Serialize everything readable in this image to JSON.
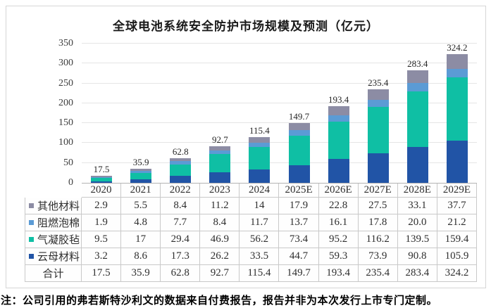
{
  "title": "全球电池系统安全防护市场规模及预测（亿元）",
  "note": "注：公司引用的弗若斯特沙利文的数据来自付费报告，报告并非为本次发行上市专门定制。",
  "chart_data": {
    "type": "bar",
    "stacked": true,
    "title": "全球电池系统安全防护市场规模及预测（亿元）",
    "categories": [
      "2020",
      "2021",
      "2022",
      "2023",
      "2024",
      "2025E",
      "2026E",
      "2027E",
      "2028E",
      "2029E"
    ],
    "series": [
      {
        "name": "其他材料",
        "color": "#8C8CA4",
        "values": [
          "2.9",
          "5.5",
          "8.4",
          "11.2",
          "14",
          "17.9",
          "22.8",
          "27.5",
          "33.1",
          "37.7"
        ]
      },
      {
        "name": "阻燃泡棉",
        "color": "#5B9BD5",
        "values": [
          "1.9",
          "4.8",
          "7.7",
          "8.4",
          "11.7",
          "13.7",
          "16.1",
          "17.8",
          "20.0",
          "21.2"
        ]
      },
      {
        "name": "气凝胶毡",
        "color": "#0FBFA4",
        "values": [
          "9.5",
          "17",
          "29.4",
          "46.9",
          "56.2",
          "73.4",
          "95.2",
          "116.2",
          "139.5",
          "159.4"
        ]
      },
      {
        "name": "云母材料",
        "color": "#2154A6",
        "values": [
          "3.2",
          "8.6",
          "17.3",
          "26.2",
          "33.5",
          "44.7",
          "59.3",
          "73.9",
          "90.8",
          "105.9"
        ]
      }
    ],
    "total_row": {
      "label": "合计",
      "values": [
        "17.5",
        "35.9",
        "62.8",
        "92.7",
        "115.4",
        "149.7",
        "193.4",
        "235.4",
        "283.4",
        "324.2"
      ]
    },
    "bar_top_labels": [
      "17.5",
      "35.9",
      "62.8",
      "92.7",
      "115.4",
      "149.7",
      "193.4",
      "235.4",
      "283.4",
      "324.2"
    ],
    "xlabel": "",
    "ylabel": "",
    "ylim": [
      0,
      350
    ],
    "ytick_step": 50,
    "grid": true,
    "legend_position": "table-rows",
    "note": "stack bottom-to-top order is reverse of series list: 云母材料, 气凝胶毡, 阻燃泡棉, 其他材料"
  }
}
